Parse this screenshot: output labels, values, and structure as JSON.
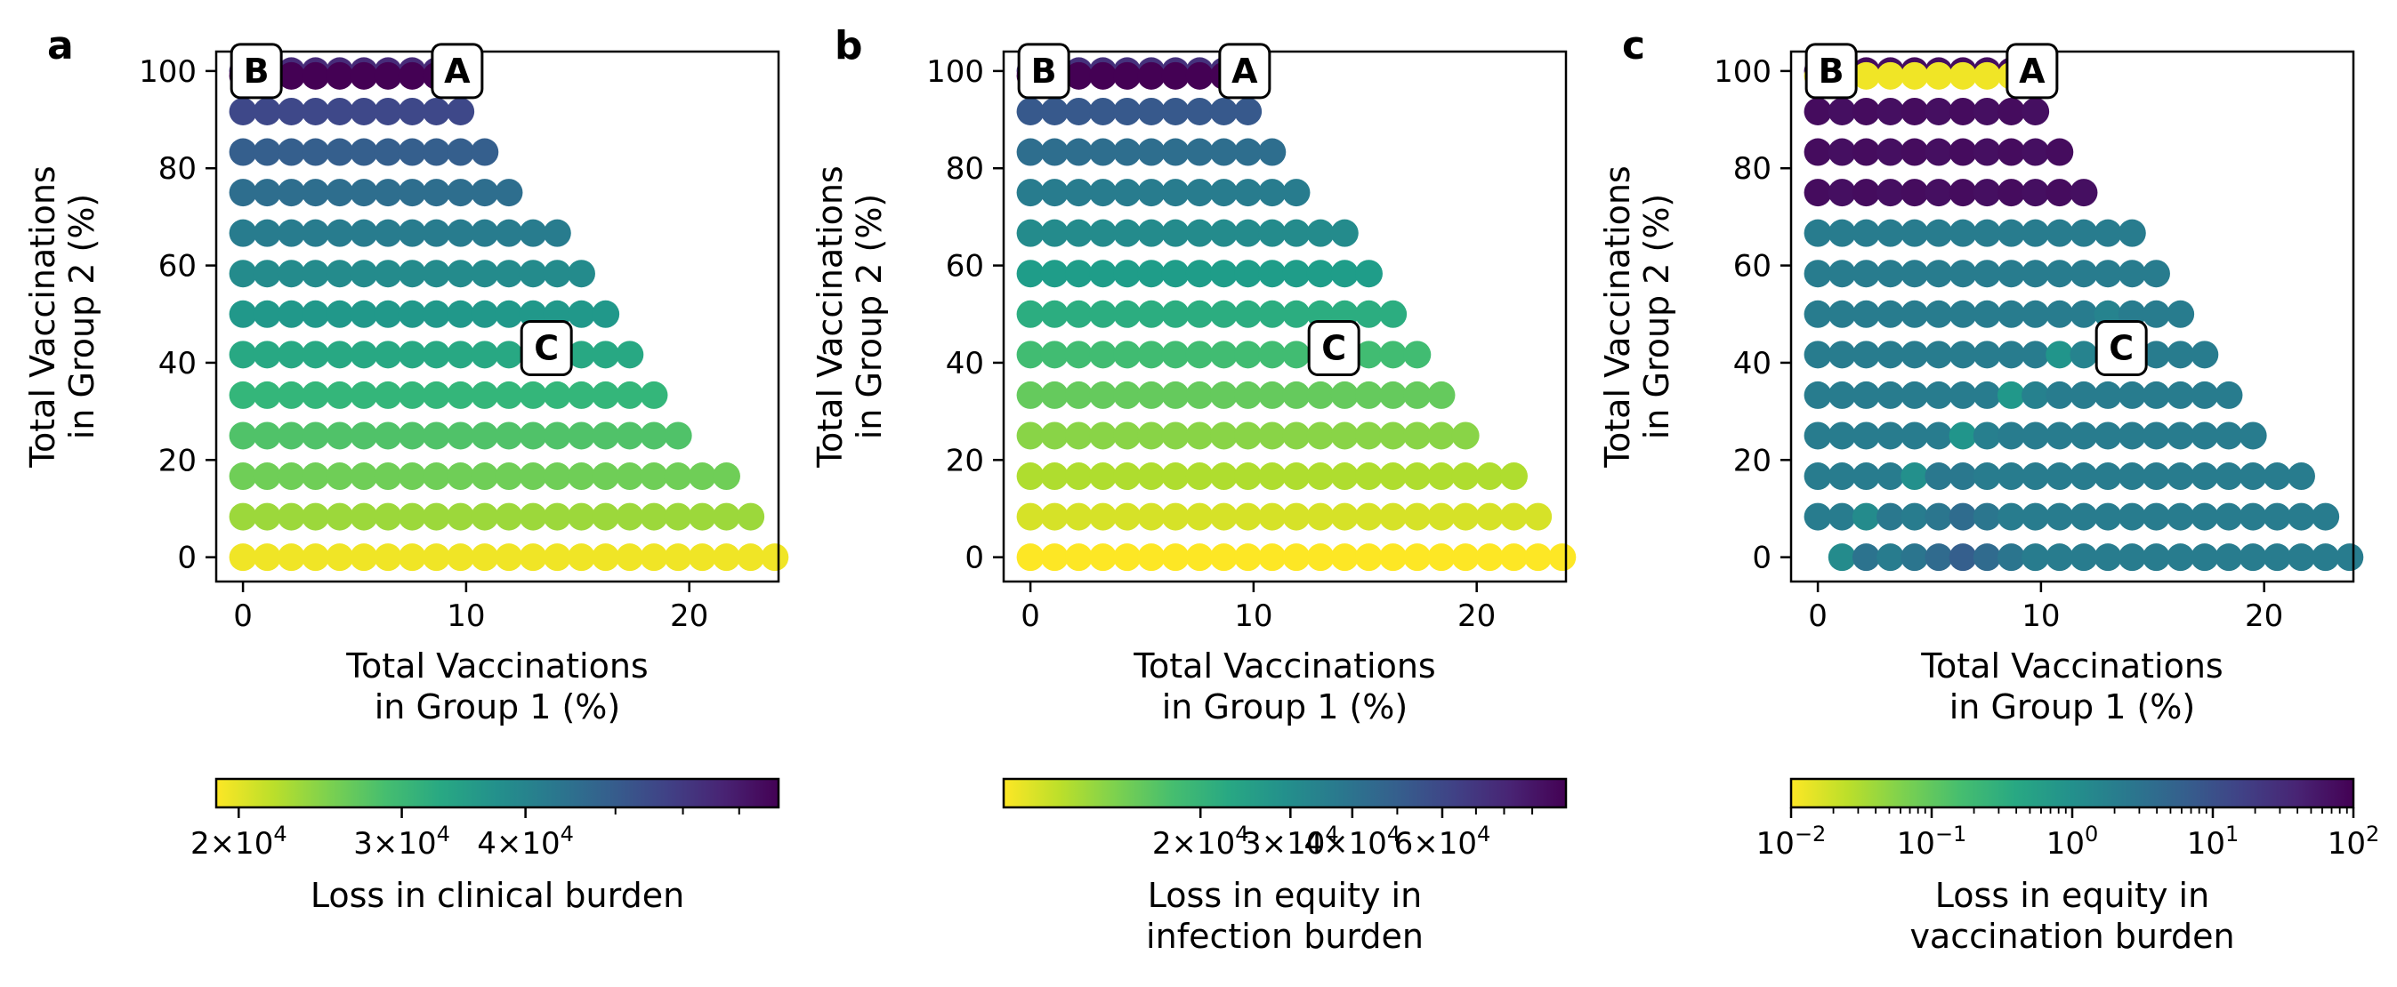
{
  "colors": {
    "viridis": [
      "#440154",
      "#482878",
      "#3e4989",
      "#31688e",
      "#26828e",
      "#1f9e89",
      "#35b779",
      "#6ece58",
      "#b5de2b",
      "#fde725"
    ]
  },
  "chart_data": [
    {
      "panel": "a",
      "type": "scatter",
      "xlabel": [
        "Total Vaccinations",
        "in Group 1 (%)"
      ],
      "ylabel": [
        "Total Vaccinations",
        "in Group 2 (%)"
      ],
      "xlim": [
        -1.2,
        24
      ],
      "ylim": [
        -5,
        104
      ],
      "xticks": [
        0,
        10,
        20
      ],
      "xtick_labels": [
        "0",
        "10",
        "20"
      ],
      "yticks": [
        0,
        20,
        40,
        60,
        80,
        100
      ],
      "ytick_labels": [
        "0",
        "20",
        "40",
        "60",
        "80",
        "100"
      ],
      "grid": false,
      "color_mode": "row",
      "row_colors": [
        0.02,
        0.15,
        0.22,
        0.28,
        0.34,
        0.4,
        0.47,
        0.52,
        0.58,
        0.64,
        0.7,
        0.78,
        0.88,
        1.0
      ],
      "annotations": [
        {
          "text": "B",
          "x": 0.6,
          "y": 100
        },
        {
          "text": "A",
          "x": 9.6,
          "y": 100
        },
        {
          "text": "C",
          "x": 13.6,
          "y": 43
        }
      ],
      "colorbar": {
        "label": [
          "Loss in clinical burden"
        ],
        "tick_labels": [
          {
            "base": "2",
            "exp": "4",
            "pos": 0.04
          },
          {
            "base": "3",
            "exp": "4",
            "pos": 0.33
          },
          {
            "base": "4",
            "exp": "4",
            "pos": 0.55
          }
        ],
        "minor_ticks": [
          0.04,
          0.33,
          0.55,
          0.71,
          0.83,
          0.93
        ],
        "log_mantissa_style": "times-ten"
      }
    },
    {
      "panel": "b",
      "type": "scatter",
      "xlabel": [
        "Total Vaccinations",
        "in Group 1 (%)"
      ],
      "ylabel": [
        "Total Vaccinations",
        "in Group 2 (%)"
      ],
      "xlim": [
        -1.2,
        24
      ],
      "ylim": [
        -5,
        104
      ],
      "xticks": [
        0,
        10,
        20
      ],
      "xtick_labels": [
        "0",
        "10",
        "20"
      ],
      "yticks": [
        0,
        20,
        40,
        60,
        80,
        100
      ],
      "ytick_labels": [
        "0",
        "20",
        "40",
        "60",
        "80",
        "100"
      ],
      "grid": false,
      "color_mode": "row",
      "row_colors": [
        0.0,
        0.06,
        0.12,
        0.18,
        0.24,
        0.31,
        0.38,
        0.45,
        0.52,
        0.58,
        0.64,
        0.72,
        0.86,
        1.0
      ],
      "annotations": [
        {
          "text": "B",
          "x": 0.6,
          "y": 100
        },
        {
          "text": "A",
          "x": 9.6,
          "y": 100
        },
        {
          "text": "C",
          "x": 13.6,
          "y": 43
        }
      ],
      "colorbar": {
        "label": [
          "Loss in equity in",
          "infection burden"
        ],
        "tick_labels": [
          {
            "base": "2",
            "exp": "4",
            "pos": 0.35
          },
          {
            "base": "3",
            "exp": "4",
            "pos": 0.51
          },
          {
            "base": "4",
            "exp": "4",
            "pos": 0.62
          },
          {
            "base": "6",
            "exp": "4",
            "pos": 0.78
          }
        ],
        "minor_ticks": [
          0.35,
          0.51,
          0.62,
          0.7,
          0.78,
          0.84,
          0.89,
          0.94
        ],
        "log_mantissa_style": "times-ten"
      }
    },
    {
      "panel": "c",
      "type": "scatter",
      "xlabel": [
        "Total Vaccinations",
        "in Group 1 (%)"
      ],
      "ylabel": [
        "Total Vaccinations",
        "in Group 2 (%)"
      ],
      "xlim": [
        -1.2,
        24
      ],
      "ylim": [
        -5,
        104
      ],
      "xticks": [
        0,
        10,
        20
      ],
      "xtick_labels": [
        "0",
        "10",
        "20"
      ],
      "yticks": [
        0,
        20,
        40,
        60,
        80,
        100
      ],
      "ytick_labels": [
        "0",
        "20",
        "40",
        "60",
        "80",
        "100"
      ],
      "grid": false,
      "color_mode": "field",
      "annotations": [
        {
          "text": "B",
          "x": 0.6,
          "y": 100
        },
        {
          "text": "A",
          "x": 9.6,
          "y": 100
        },
        {
          "text": "C",
          "x": 13.6,
          "y": 43
        }
      ],
      "colorbar": {
        "label": [
          "Loss in equity in",
          "vaccination burden"
        ],
        "tick_labels": [
          {
            "base": "10",
            "exp": "−2",
            "pos": 0.0
          },
          {
            "base": "10",
            "exp": "−1",
            "pos": 0.25
          },
          {
            "base": "10",
            "exp": "0",
            "pos": 0.5
          },
          {
            "base": "10",
            "exp": "1",
            "pos": 0.75
          },
          {
            "base": "10",
            "exp": "2",
            "pos": 1.0
          }
        ],
        "log_decades": 4,
        "log_mantissa_style": "power"
      }
    }
  ],
  "grid_points": {
    "x_step": 1.0833,
    "y_step": 8.333,
    "rows": 13
  }
}
